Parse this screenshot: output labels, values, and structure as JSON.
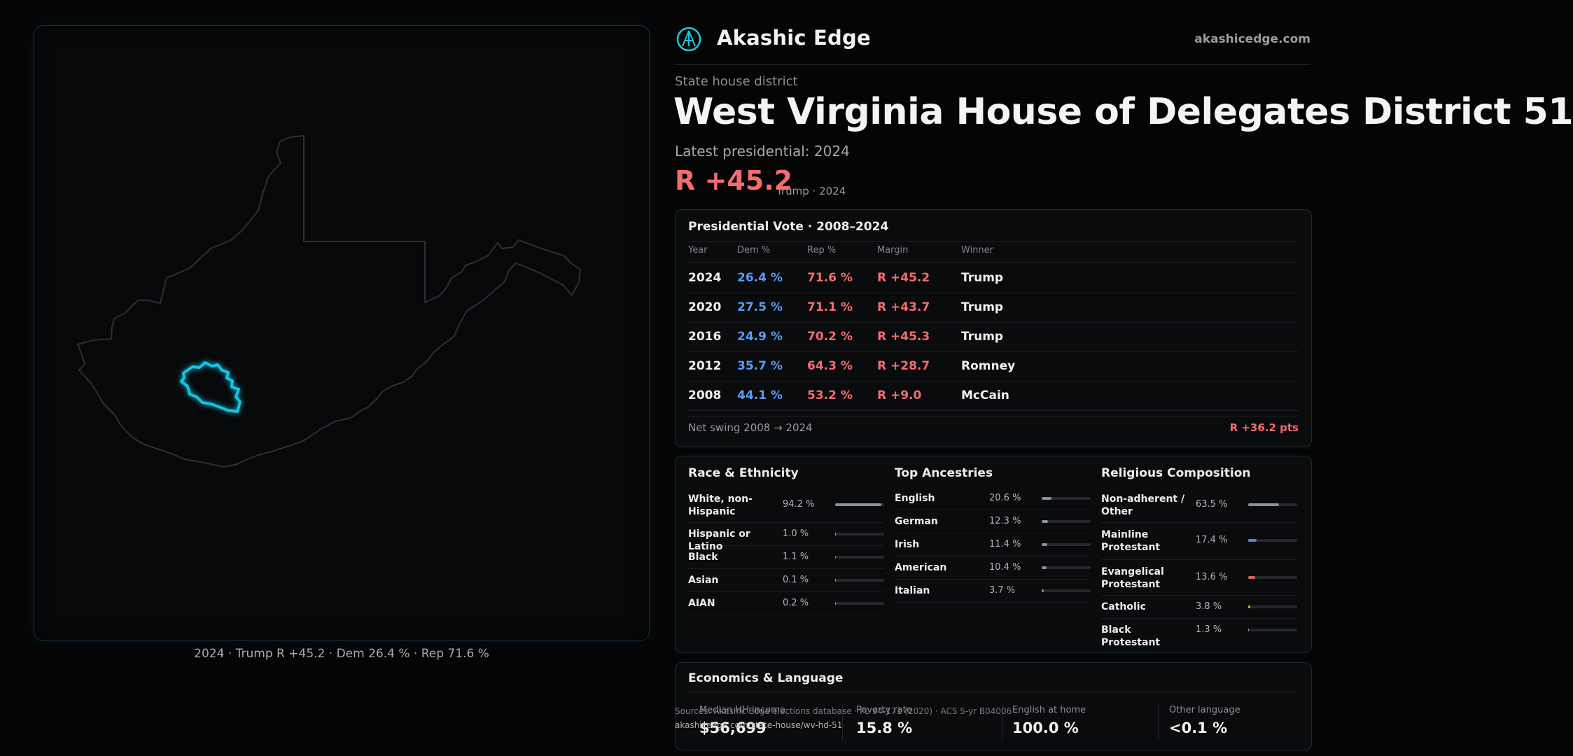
{
  "map": {
    "caption": "2024 · Trump R +45.2 · Dem 26.4 % · Rep 71.6 %"
  },
  "header": {
    "brand": "Akashic Edge",
    "site": "akashicedge.com",
    "logo_icon": "akashic-logo-icon"
  },
  "district": {
    "kind": "State house district",
    "title": "West Virginia House of Delegates District 51",
    "latest_label": "Latest presidential: 2024",
    "margin": "R +45.2",
    "margin_sub": "Trump · 2024"
  },
  "presidential": {
    "title": "Presidential Vote · 2008–2024",
    "headers": [
      "Year",
      "Dem %",
      "Rep %",
      "Margin",
      "Winner"
    ],
    "rows": [
      {
        "year": "2024",
        "dem": "26.4 %",
        "rep": "71.6 %",
        "margin": "R +45.2",
        "winner": "Trump"
      },
      {
        "year": "2020",
        "dem": "27.5 %",
        "rep": "71.1 %",
        "margin": "R +43.7",
        "winner": "Trump"
      },
      {
        "year": "2016",
        "dem": "24.9 %",
        "rep": "70.2 %",
        "margin": "R +45.3",
        "winner": "Trump"
      },
      {
        "year": "2012",
        "dem": "35.7 %",
        "rep": "64.3 %",
        "margin": "R +28.7",
        "winner": "Romney"
      },
      {
        "year": "2008",
        "dem": "44.1 %",
        "rep": "53.2 %",
        "margin": "R +9.0",
        "winner": "McCain"
      }
    ],
    "swing_label": "Net swing 2008 → 2024",
    "swing_value": "R +36.2 pts"
  },
  "demographics": {
    "race": {
      "title": "Race & Ethnicity",
      "items": [
        {
          "label": "White, non-Hispanic",
          "value": "94.2 %",
          "pct": 94.2,
          "color": "#8b8f99"
        },
        {
          "label": "Hispanic or Latino",
          "value": "1.0 %",
          "pct": 1.0,
          "color": "#e0a64a"
        },
        {
          "label": "Black",
          "value": "1.1 %",
          "pct": 1.1,
          "color": "#6a7ee0"
        },
        {
          "label": "Asian",
          "value": "0.1 %",
          "pct": 0.1,
          "color": "#6fb0a0"
        },
        {
          "label": "AIAN",
          "value": "0.2 %",
          "pct": 0.2,
          "color": "#c08a6a"
        }
      ]
    },
    "ancestry": {
      "title": "Top Ancestries",
      "items": [
        {
          "label": "English",
          "value": "20.6 %",
          "pct": 20.6,
          "color": "#8b8f99"
        },
        {
          "label": "German",
          "value": "12.3 %",
          "pct": 12.3,
          "color": "#8b8f99"
        },
        {
          "label": "Irish",
          "value": "11.4 %",
          "pct": 11.4,
          "color": "#8b8f99"
        },
        {
          "label": "American",
          "value": "10.4 %",
          "pct": 10.4,
          "color": "#8b8f99"
        },
        {
          "label": "Italian",
          "value": "3.7 %",
          "pct": 3.7,
          "color": "#8b8f99"
        }
      ]
    },
    "religion": {
      "title": "Religious Composition",
      "items": [
        {
          "label": "Non-adherent / Other",
          "value": "63.5 %",
          "pct": 63.5,
          "color": "#8b8f99"
        },
        {
          "label": "Mainline Protestant",
          "value": "17.4 %",
          "pct": 17.4,
          "color": "#4f86d9"
        },
        {
          "label": "Evangelical Protestant",
          "value": "13.6 %",
          "pct": 13.6,
          "color": "#e06060"
        },
        {
          "label": "Catholic",
          "value": "3.8 %",
          "pct": 3.8,
          "color": "#e0b040"
        },
        {
          "label": "Black Protestant",
          "value": "1.3 %",
          "pct": 1.3,
          "color": "#9a9aa0"
        }
      ]
    }
  },
  "economics": {
    "title": "Economics & Language",
    "cells": [
      {
        "label": "Median HH income",
        "value": "$56,699"
      },
      {
        "label": "Poverty rate",
        "value": "15.8 %"
      },
      {
        "label": "English at home",
        "value": "100.0 %"
      },
      {
        "label": "Other language",
        "value": "<0.1 %"
      }
    ]
  },
  "source": {
    "line": "Sources: Akashic Edge elections database · PL 94-171 (2020) · ACS 5-yr B04006",
    "url": "akashicedge.com/state-house/wv-hd-51"
  }
}
